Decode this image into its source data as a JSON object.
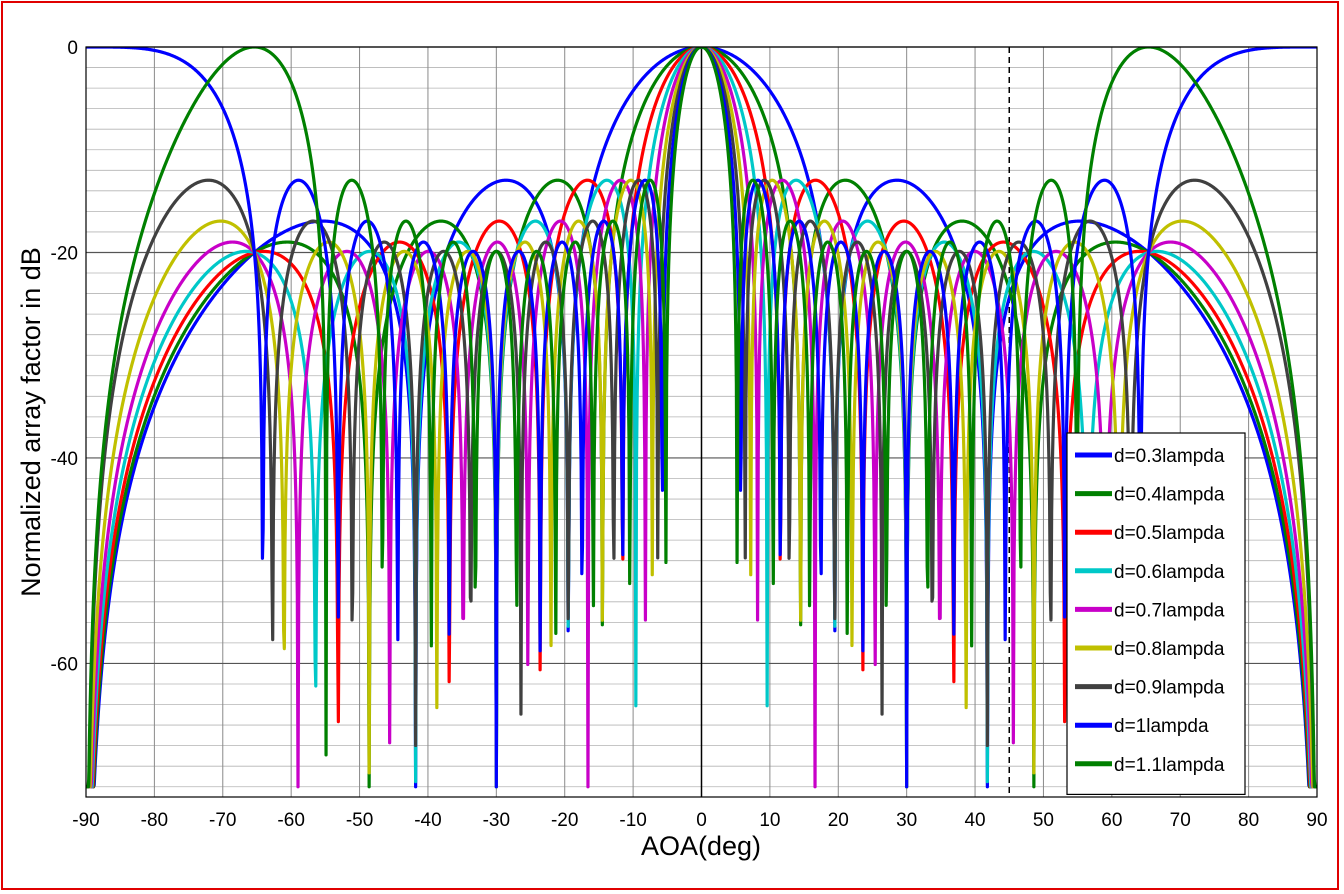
{
  "chart_data": {
    "type": "line",
    "title": "",
    "xlabel": "AOA(deg)",
    "ylabel": "Normalized array factor in dB",
    "xlim": [
      -90,
      90
    ],
    "ylim": [
      -73,
      0
    ],
    "xticks": [
      -90,
      -80,
      -70,
      -60,
      -50,
      -40,
      -30,
      -20,
      -10,
      0,
      10,
      20,
      30,
      40,
      50,
      60,
      70,
      80,
      90
    ],
    "yticks": [
      0,
      -20,
      -40,
      -60
    ],
    "grid": true,
    "minor_grid_y": true,
    "reference_lines": [
      {
        "x": 45,
        "style": "dashed"
      },
      {
        "x": 0,
        "style": "solid"
      }
    ],
    "legend_position": "bottom-right",
    "element_count": 10,
    "series": [
      {
        "name": "d=0.3lampda",
        "d": 0.3,
        "color": "#0000ff"
      },
      {
        "name": "d=0.4lampda",
        "d": 0.4,
        "color": "#008000"
      },
      {
        "name": "d=0.5lampda",
        "d": 0.5,
        "color": "#ff0000"
      },
      {
        "name": "d=0.6lampda",
        "d": 0.6,
        "color": "#00c8c8"
      },
      {
        "name": "d=0.7lampda",
        "d": 0.7,
        "color": "#c800c8"
      },
      {
        "name": "d=0.8lampda",
        "d": 0.8,
        "color": "#c0c000"
      },
      {
        "name": "d=0.9lampda",
        "d": 0.9,
        "color": "#404040"
      },
      {
        "name": "d=1lampda",
        "d": 1.0,
        "color": "#0000ff"
      },
      {
        "name": "d=1.1lampda",
        "d": 1.1,
        "color": "#008000"
      }
    ]
  }
}
